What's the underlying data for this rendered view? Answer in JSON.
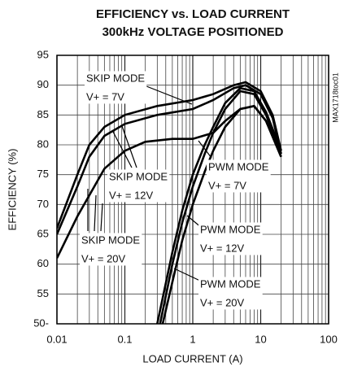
{
  "chart_data": {
    "type": "line",
    "title": "EFFICIENCY vs. LOAD CURRENT",
    "subtitle": "300kHz VOLTAGE POSITIONED",
    "xlabel": "LOAD CURRENT (A)",
    "ylabel": "EFFICIENCY (%)",
    "code": "MAX1718toc01",
    "xscale": "log",
    "xlim": [
      0.01,
      100
    ],
    "xticks": [
      0.01,
      0.1,
      1,
      10,
      100
    ],
    "ylim": [
      50,
      95
    ],
    "yticks": [
      {
        "value": 50,
        "label": "50-"
      },
      55,
      60,
      65,
      70,
      75,
      80,
      85,
      90,
      95
    ],
    "grid": true,
    "series": [
      {
        "color": "#000000",
        "x": [
          0.01,
          0.02,
          0.03,
          0.05,
          0.1,
          0.3,
          1,
          2,
          4,
          6,
          10,
          15,
          20
        ],
        "values": [
          66,
          75,
          80,
          83,
          85,
          86.5,
          87.5,
          88.5,
          90,
          90.5,
          89,
          85,
          79
        ]
      },
      {
        "color": "#000000",
        "x": [
          0.01,
          0.02,
          0.03,
          0.05,
          0.1,
          0.3,
          1,
          2,
          4,
          6,
          10,
          15,
          20
        ],
        "values": [
          65,
          73,
          78,
          81.5,
          83.5,
          85,
          86,
          87.5,
          89.5,
          90,
          88.5,
          84.5,
          78.5
        ]
      },
      {
        "color": "#000000",
        "x": [
          0.01,
          0.02,
          0.05,
          0.1,
          0.2,
          0.5,
          1,
          2,
          3,
          5,
          8,
          12,
          20
        ],
        "values": [
          61,
          68,
          76,
          79,
          80.5,
          81,
          81,
          82,
          84,
          86,
          86.5,
          84,
          78
        ]
      },
      {
        "color": "#000000",
        "x": [
          0.3,
          0.5,
          0.7,
          1,
          1.5,
          2,
          3,
          5,
          8,
          12,
          20
        ],
        "values": [
          50,
          62,
          69,
          75,
          80,
          83,
          87,
          89.5,
          89,
          85.5,
          79
        ]
      },
      {
        "color": "#000000",
        "x": [
          0.33,
          0.5,
          0.7,
          1,
          1.5,
          2,
          3,
          5,
          8,
          12,
          20
        ],
        "values": [
          50,
          60,
          67,
          73,
          78.5,
          82,
          86,
          89,
          88.5,
          85,
          78.5
        ]
      },
      {
        "color": "#000000",
        "x": [
          0.36,
          0.5,
          0.7,
          1,
          1.5,
          2,
          3,
          5,
          8,
          12,
          20
        ],
        "values": [
          50,
          57,
          64,
          70,
          75.5,
          79,
          83,
          86,
          86.5,
          84,
          78
        ]
      }
    ],
    "annotations": [
      {
        "text": [
          "SKIP MODE",
          "V+ = 7V"
        ]
      },
      {
        "text": [
          "SKIP MODE",
          "V+ = 12V"
        ]
      },
      {
        "text": [
          "SKIP MODE",
          "V+ = 20V"
        ]
      },
      {
        "text": [
          "PWM MODE",
          "V+ = 7V"
        ]
      },
      {
        "text": [
          "PWM MODE",
          "V+ = 12V"
        ]
      },
      {
        "text": [
          "PWM MODE",
          "V+ = 20V"
        ]
      }
    ]
  }
}
